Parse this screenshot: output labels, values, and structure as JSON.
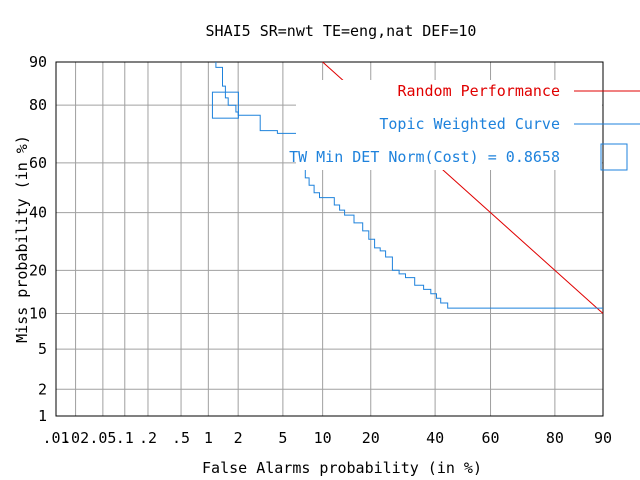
{
  "chart_data": {
    "type": "line",
    "title": "SHAI5 SR=nwt TE=eng,nat DEF=10",
    "xlabel": "False Alarms probability (in %)",
    "ylabel": "Miss probability (in %)",
    "x_scale": "normal-deviate (DET)",
    "y_scale": "normal-deviate (DET)",
    "xlim": [
      0.01,
      90
    ],
    "ylim": [
      1,
      90
    ],
    "grid": true,
    "legend_position": "top-right",
    "x_ticks": [
      {
        "value": 0.01,
        "label": ".01"
      },
      {
        "value": 0.02,
        "label": ".02"
      },
      {
        "value": 0.05,
        "label": ".05"
      },
      {
        "value": 0.1,
        "label": ".1"
      },
      {
        "value": 0.2,
        "label": ".2"
      },
      {
        "value": 0.5,
        "label": ".5"
      },
      {
        "value": 1,
        "label": "1"
      },
      {
        "value": 2,
        "label": "2"
      },
      {
        "value": 5,
        "label": "5"
      },
      {
        "value": 10,
        "label": "10"
      },
      {
        "value": 20,
        "label": "20"
      },
      {
        "value": 40,
        "label": "40"
      },
      {
        "value": 60,
        "label": "60"
      },
      {
        "value": 80,
        "label": "80"
      },
      {
        "value": 90,
        "label": "90"
      }
    ],
    "y_ticks": [
      {
        "value": 1,
        "label": "1"
      },
      {
        "value": 2,
        "label": "2"
      },
      {
        "value": 5,
        "label": "5"
      },
      {
        "value": 10,
        "label": "10"
      },
      {
        "value": 20,
        "label": "20"
      },
      {
        "value": 40,
        "label": "40"
      },
      {
        "value": 60,
        "label": "60"
      },
      {
        "value": 80,
        "label": "80"
      },
      {
        "value": 90,
        "label": "90"
      }
    ],
    "series": [
      {
        "name": "Random Performance",
        "color": "#e00000",
        "marker": "none",
        "x": [
          10,
          90
        ],
        "y": [
          90,
          10
        ]
      },
      {
        "name": "Topic Weighted Curve",
        "color": "#1e82dc",
        "marker": "none",
        "x": [
          1.2,
          1.2,
          1.4,
          1.4,
          1.5,
          1.5,
          1.6,
          1.6,
          1.9,
          1.9,
          2.0,
          2.0,
          3.2,
          3.2,
          4.5,
          4.5,
          6.5,
          6.5,
          7.0,
          7.0,
          7.5,
          7.5,
          8.0,
          8.0,
          8.7,
          8.7,
          9.5,
          9.5,
          12,
          12,
          13,
          13,
          14,
          14,
          16,
          16,
          18,
          18,
          19.5,
          19.5,
          21,
          21,
          22.5,
          22.5,
          24,
          24,
          26,
          26,
          28,
          28,
          30,
          30,
          33,
          33,
          36,
          36,
          38.5,
          38.5,
          40.5,
          40.5,
          42,
          42,
          44.5,
          44.5,
          90
        ],
        "y": [
          90,
          89,
          89,
          85,
          85,
          82,
          82,
          80,
          80,
          78,
          78,
          77,
          77,
          72,
          72,
          71,
          71,
          62,
          62,
          58,
          58,
          54,
          54,
          51,
          51,
          48,
          48,
          46,
          46,
          43,
          43,
          41,
          41,
          39,
          39,
          36,
          36,
          33,
          33,
          30,
          30,
          27,
          27,
          26,
          26,
          24,
          24,
          20,
          20,
          19,
          19,
          18,
          18,
          16,
          16,
          15,
          15,
          14,
          14,
          13,
          13,
          12,
          12,
          11,
          11
        ]
      }
    ],
    "annotation": {
      "label": "TW Min DET Norm(Cost) = 0.8658",
      "color": "#1e82dc",
      "marker": "open-square",
      "point_x": 1.5,
      "point_y": 80
    }
  }
}
